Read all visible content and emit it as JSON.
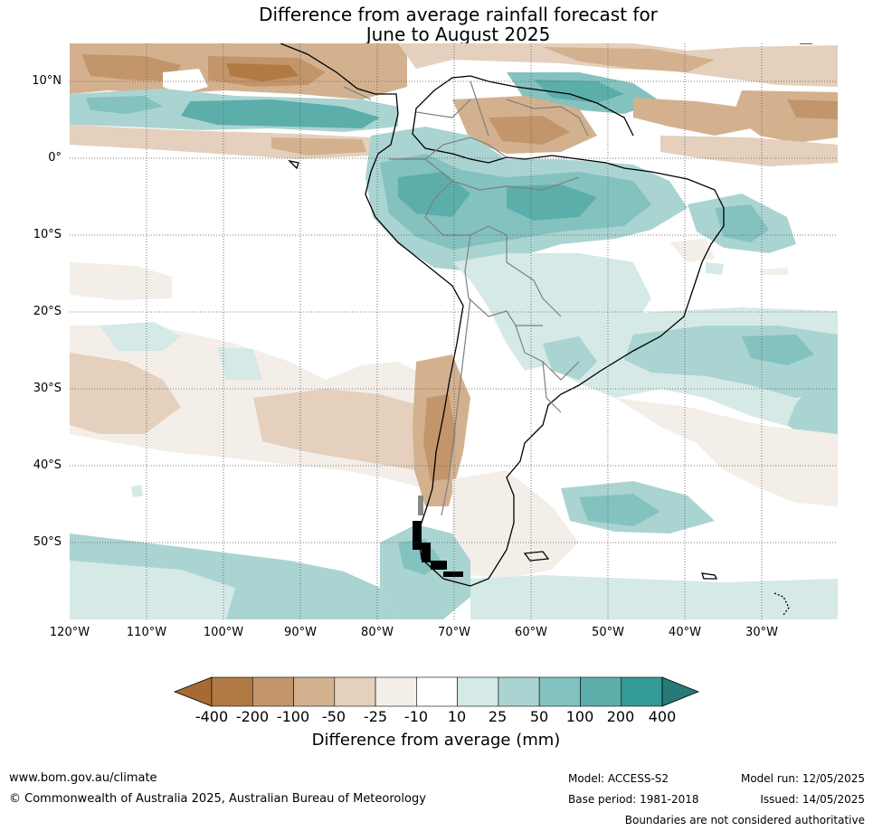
{
  "title": {
    "line1": "Difference from average rainfall forecast for",
    "line2": "June to August 2025"
  },
  "map": {
    "region": "South America",
    "lat_labels": [
      "10°N",
      "0°",
      "10°S",
      "20°S",
      "30°S",
      "40°S",
      "50°S"
    ],
    "lon_labels": [
      "120°W",
      "110°W",
      "100°W",
      "90°W",
      "80°W",
      "70°W",
      "60°W",
      "50°W",
      "40°W",
      "30°W"
    ]
  },
  "colorbar": {
    "label": "Difference from average (mm)",
    "ticks": [
      "-400",
      "-200",
      "-100",
      "-50",
      "-25",
      "-10",
      "10",
      "25",
      "50",
      "100",
      "200",
      "400"
    ],
    "colors": [
      "#a86a34",
      "#b07a44",
      "#c3956b",
      "#d3b18f",
      "#e4d0bd",
      "#f3eee8",
      "#ffffff",
      "#d5e9e7",
      "#aad4d2",
      "#84c2bf",
      "#5caeab",
      "#349a96",
      "#277a76"
    ]
  },
  "footer": {
    "website": "www.bom.gov.au/climate",
    "copyright": "© Commonwealth of Australia 2025, Australian Bureau of Meteorology",
    "model": "Model: ACCESS-S2",
    "base_period": "Base period: 1981-2018",
    "model_run": "Model run: 12/05/2025",
    "issued": "Issued: 14/05/2025",
    "disclaimer": "Boundaries are not considered authoritative"
  }
}
